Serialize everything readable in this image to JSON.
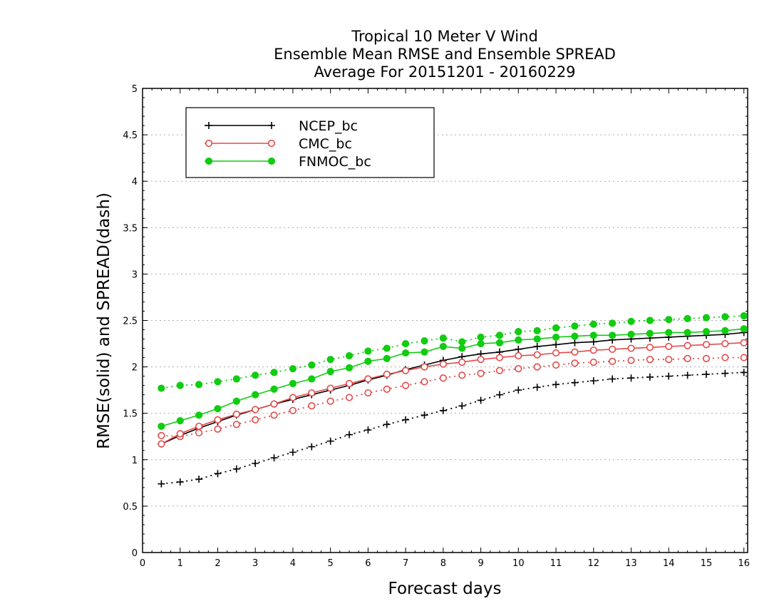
{
  "chart_data": {
    "type": "line",
    "title": [
      "Tropical 10 Meter V Wind",
      "Ensemble Mean RMSE and Ensemble SPREAD",
      "Average For 20151201 - 20160229"
    ],
    "xlabel": "Forecast days",
    "ylabel": "RMSE(solid) and SPREAD(dash)",
    "xlim": [
      0,
      16.1
    ],
    "ylim": [
      0,
      5
    ],
    "xticks": [
      0,
      1,
      2,
      3,
      4,
      5,
      6,
      7,
      8,
      9,
      10,
      11,
      12,
      13,
      14,
      15,
      16
    ],
    "yticks": [
      0,
      0.5,
      1,
      1.5,
      2,
      2.5,
      3,
      3.5,
      4,
      4.5,
      5
    ],
    "grid": "horizontal dotted",
    "legend_position": "top-left",
    "x": [
      0.5,
      1,
      1.5,
      2,
      2.5,
      3,
      3.5,
      4,
      4.5,
      5,
      5.5,
      6,
      6.5,
      7,
      7.5,
      8,
      8.5,
      9,
      9.5,
      10,
      10.5,
      11,
      11.5,
      12,
      12.5,
      13,
      13.5,
      14,
      14.5,
      15,
      15.5,
      16
    ],
    "series": [
      {
        "name": "NCEP_bc",
        "color": "#000000",
        "marker": "plus",
        "rmse": [
          1.17,
          1.26,
          1.34,
          1.41,
          1.48,
          1.54,
          1.6,
          1.65,
          1.7,
          1.75,
          1.8,
          1.86,
          1.91,
          1.97,
          2.02,
          2.07,
          2.11,
          2.14,
          2.16,
          2.19,
          2.22,
          2.24,
          2.26,
          2.27,
          2.29,
          2.3,
          2.31,
          2.32,
          2.33,
          2.34,
          2.35,
          2.37
        ],
        "spread": [
          0.74,
          0.76,
          0.79,
          0.85,
          0.9,
          0.96,
          1.02,
          1.08,
          1.14,
          1.2,
          1.27,
          1.32,
          1.38,
          1.43,
          1.48,
          1.53,
          1.58,
          1.64,
          1.7,
          1.75,
          1.78,
          1.81,
          1.83,
          1.85,
          1.87,
          1.88,
          1.89,
          1.9,
          1.91,
          1.92,
          1.93,
          1.94
        ]
      },
      {
        "name": "CMC_bc",
        "color": "#e34a4a",
        "marker": "open-circle",
        "rmse": [
          1.17,
          1.28,
          1.36,
          1.43,
          1.49,
          1.54,
          1.6,
          1.67,
          1.72,
          1.77,
          1.82,
          1.87,
          1.92,
          1.96,
          2.0,
          2.03,
          2.05,
          2.08,
          2.1,
          2.12,
          2.13,
          2.15,
          2.16,
          2.18,
          2.19,
          2.2,
          2.21,
          2.22,
          2.23,
          2.24,
          2.25,
          2.26
        ],
        "spread": [
          1.26,
          1.25,
          1.29,
          1.33,
          1.38,
          1.43,
          1.48,
          1.53,
          1.58,
          1.63,
          1.67,
          1.72,
          1.76,
          1.8,
          1.84,
          1.88,
          1.91,
          1.93,
          1.96,
          1.98,
          2.0,
          2.02,
          2.04,
          2.05,
          2.06,
          2.07,
          2.08,
          2.08,
          2.09,
          2.09,
          2.1,
          2.1
        ]
      },
      {
        "name": "FNMOC_bc",
        "color": "#11cc11",
        "marker": "filled-circle",
        "rmse": [
          1.36,
          1.42,
          1.48,
          1.55,
          1.63,
          1.7,
          1.76,
          1.82,
          1.87,
          1.95,
          1.99,
          2.06,
          2.09,
          2.15,
          2.16,
          2.22,
          2.2,
          2.25,
          2.26,
          2.29,
          2.3,
          2.32,
          2.33,
          2.34,
          2.34,
          2.35,
          2.36,
          2.37,
          2.37,
          2.38,
          2.39,
          2.41
        ],
        "spread": [
          1.77,
          1.8,
          1.81,
          1.84,
          1.87,
          1.91,
          1.94,
          1.98,
          2.02,
          2.08,
          2.12,
          2.17,
          2.2,
          2.25,
          2.28,
          2.31,
          2.27,
          2.32,
          2.34,
          2.38,
          2.39,
          2.42,
          2.44,
          2.46,
          2.47,
          2.49,
          2.5,
          2.51,
          2.52,
          2.53,
          2.54,
          2.55
        ]
      }
    ]
  }
}
